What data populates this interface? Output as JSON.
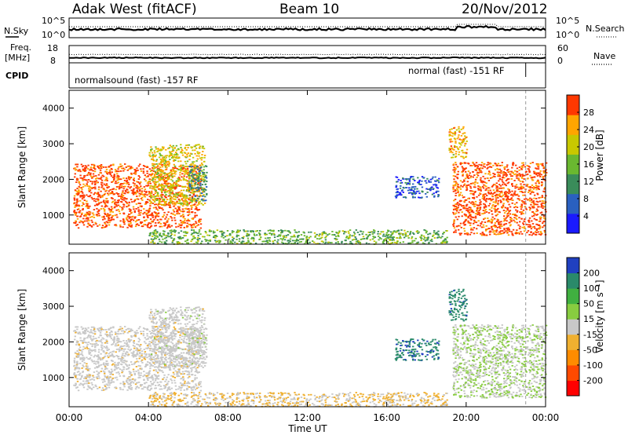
{
  "header": {
    "station": "Adak West (fitACF)",
    "beam": "Beam 10",
    "date": "20/Nov/2012"
  },
  "chart_data": [
    {
      "panel": "sky-noise",
      "type": "line",
      "left_label": "N.Sky",
      "right_label": "N.Search",
      "left_ticks": [
        "10^5",
        "10^0"
      ],
      "right_ticks": [
        "10^5",
        "10^0"
      ],
      "scale": "log"
    },
    {
      "panel": "frequency-nave",
      "type": "line",
      "left_label_lines": [
        "Freq.",
        "[MHz]"
      ],
      "right_label": "Nave",
      "left_ticks": [
        "18",
        "8"
      ],
      "right_ticks": [
        "60",
        "0"
      ],
      "left_range": [
        8,
        18
      ],
      "right_range": [
        0,
        60
      ]
    },
    {
      "panel": "cpid",
      "label": "CPID",
      "segments": [
        {
          "name": "normalsound (fast) -157 RF",
          "start": "00:00",
          "end": "23:00"
        },
        {
          "name": "normal (fast) -151 RF",
          "start": "23:00",
          "end": "24:00"
        }
      ]
    },
    {
      "panel": "power",
      "type": "heatmap",
      "ylabel": "Slant Range [km]",
      "yticks": [
        "4000",
        "3000",
        "2000",
        "1000"
      ],
      "ylim": [
        180,
        4500
      ],
      "colorbar": {
        "label": "Power [dB]",
        "ticks": [
          "28",
          "24",
          "20",
          "16",
          "12",
          "8",
          "4"
        ],
        "range": [
          0,
          30
        ],
        "colors": [
          "#1a1aff",
          "#2a60c0",
          "#3a8c5a",
          "#6ab830",
          "#c8c800",
          "#ffa500",
          "#ff3800"
        ]
      }
    },
    {
      "panel": "velocity",
      "type": "heatmap",
      "ylabel": "Slant Range [km]",
      "yticks": [
        "4000",
        "3000",
        "2000",
        "1000"
      ],
      "ylim": [
        180,
        4500
      ],
      "colorbar": {
        "label": "Velocity [m s⁻¹]",
        "ticks": [
          "200",
          "100",
          "50",
          "15",
          "-15",
          "-50",
          "-100",
          "-200"
        ],
        "range": [
          -250,
          250
        ],
        "colors": [
          "#ff0000",
          "#ff4a00",
          "#ff8c00",
          "#f0b030",
          "#c8c8c8",
          "#88cc40",
          "#40b040",
          "#2a8a6a",
          "#2040c0"
        ]
      }
    }
  ],
  "x_axis": {
    "label": "Time UT",
    "ticks": [
      "00:00",
      "04:00",
      "08:00",
      "12:00",
      "16:00",
      "20:00",
      "00:00"
    ],
    "range_hours": [
      0,
      24
    ]
  },
  "echo_regions": [
    {
      "start_h": 0.2,
      "end_h": 6.6,
      "r_min": 650,
      "r_max": 2450,
      "power_level": 28,
      "velocity": -5
    },
    {
      "start_h": 4.0,
      "end_h": 6.8,
      "r_min": 1300,
      "r_max": 3000,
      "power_level": 20,
      "velocity": 0
    },
    {
      "start_h": 6.0,
      "end_h": 6.9,
      "r_min": 1400,
      "r_max": 2400,
      "power_level": 10,
      "velocity": 5
    },
    {
      "start_h": 16.4,
      "end_h": 18.6,
      "r_min": 1500,
      "r_max": 2100,
      "power_level": 6,
      "velocity": 180
    },
    {
      "start_h": 19.1,
      "end_h": 20.0,
      "r_min": 2600,
      "r_max": 3500,
      "power_level": 22,
      "velocity": 170
    },
    {
      "start_h": 19.3,
      "end_h": 24.0,
      "r_min": 450,
      "r_max": 2500,
      "power_level": 28,
      "velocity": 25
    },
    {
      "start_h": 4.0,
      "end_h": 19.0,
      "r_min": 200,
      "r_max": 600,
      "power_level": 14,
      "velocity": -30
    }
  ]
}
